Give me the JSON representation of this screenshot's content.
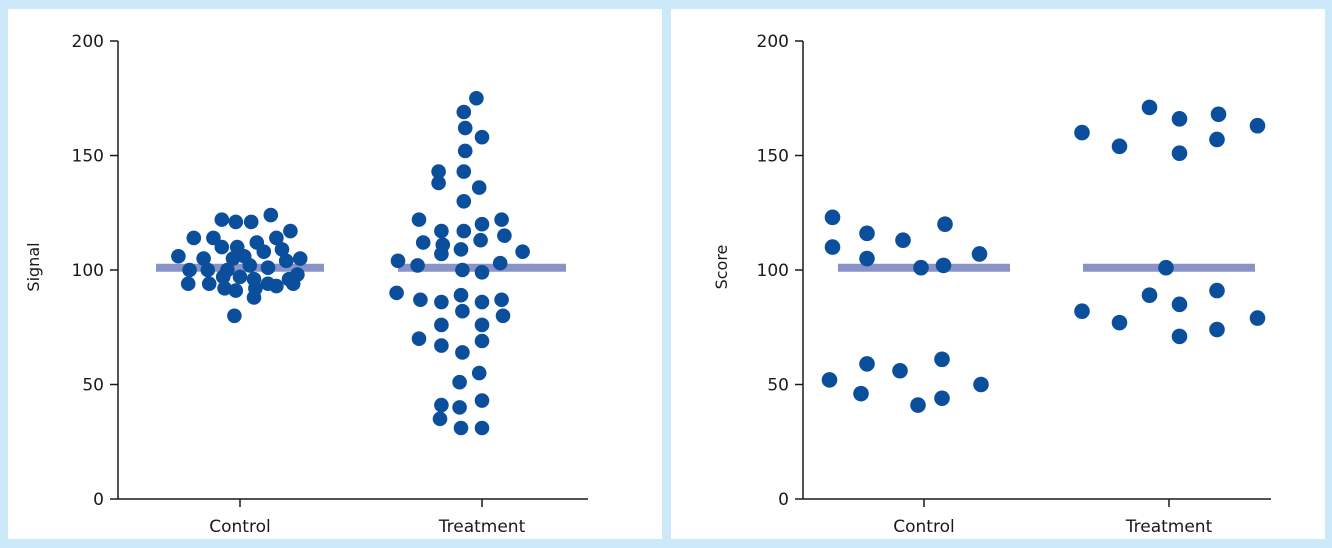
{
  "chart_data": [
    {
      "type": "scatter",
      "title": "",
      "xlabel": "",
      "ylabel": "Signal",
      "ylim": [
        0,
        200
      ],
      "yticks": [
        0,
        50,
        100,
        150,
        200
      ],
      "categories": [
        "Control",
        "Treatment"
      ],
      "mean_line_color": "#8a93c8",
      "point_color": "#0b4f9c",
      "mean_lines": [
        {
          "category": "Control",
          "y": 101
        },
        {
          "category": "Treatment",
          "y": 101
        }
      ],
      "series": [
        {
          "category": "Control",
          "points": [
            {
              "x": -0.44,
              "y": 106
            },
            {
              "x": -0.33,
              "y": 114
            },
            {
              "x": -0.19,
              "y": 114
            },
            {
              "x": -0.13,
              "y": 122
            },
            {
              "x": -0.03,
              "y": 121
            },
            {
              "x": 0.08,
              "y": 121
            },
            {
              "x": 0.22,
              "y": 124
            },
            {
              "x": 0.36,
              "y": 117
            },
            {
              "x": -0.26,
              "y": 105
            },
            {
              "x": -0.13,
              "y": 110
            },
            {
              "x": -0.05,
              "y": 105
            },
            {
              "x": 0.03,
              "y": 106
            },
            {
              "x": 0.12,
              "y": 112
            },
            {
              "x": 0.26,
              "y": 114
            },
            {
              "x": 0.43,
              "y": 105
            },
            {
              "x": -0.36,
              "y": 100
            },
            {
              "x": -0.23,
              "y": 100
            },
            {
              "x": -0.09,
              "y": 100
            },
            {
              "x": -0.02,
              "y": 110
            },
            {
              "x": 0.07,
              "y": 102
            },
            {
              "x": 0.17,
              "y": 108
            },
            {
              "x": 0.3,
              "y": 109
            },
            {
              "x": -0.37,
              "y": 94
            },
            {
              "x": -0.22,
              "y": 94
            },
            {
              "x": -0.12,
              "y": 97
            },
            {
              "x": 0.0,
              "y": 97
            },
            {
              "x": 0.1,
              "y": 96
            },
            {
              "x": 0.2,
              "y": 101
            },
            {
              "x": 0.33,
              "y": 104
            },
            {
              "x": 0.41,
              "y": 98
            },
            {
              "x": -0.11,
              "y": 92
            },
            {
              "x": -0.03,
              "y": 91
            },
            {
              "x": 0.11,
              "y": 92
            },
            {
              "x": 0.2,
              "y": 94
            },
            {
              "x": 0.26,
              "y": 93
            },
            {
              "x": 0.35,
              "y": 96
            },
            {
              "x": 0.38,
              "y": 94
            },
            {
              "x": 0.1,
              "y": 88
            },
            {
              "x": -0.04,
              "y": 80
            }
          ]
        },
        {
          "category": "Treatment",
          "points": [
            {
              "x": -0.04,
              "y": 175
            },
            {
              "x": -0.13,
              "y": 169
            },
            {
              "x": -0.12,
              "y": 162
            },
            {
              "x": 0.0,
              "y": 158
            },
            {
              "x": -0.12,
              "y": 152
            },
            {
              "x": -0.31,
              "y": 143
            },
            {
              "x": -0.13,
              "y": 143
            },
            {
              "x": -0.31,
              "y": 138
            },
            {
              "x": -0.02,
              "y": 136
            },
            {
              "x": -0.13,
              "y": 130
            },
            {
              "x": -0.45,
              "y": 122
            },
            {
              "x": -0.29,
              "y": 117
            },
            {
              "x": -0.13,
              "y": 117
            },
            {
              "x": 0.0,
              "y": 120
            },
            {
              "x": 0.14,
              "y": 122
            },
            {
              "x": -0.42,
              "y": 112
            },
            {
              "x": -0.28,
              "y": 111
            },
            {
              "x": -0.15,
              "y": 109
            },
            {
              "x": -0.01,
              "y": 113
            },
            {
              "x": 0.16,
              "y": 115
            },
            {
              "x": 0.29,
              "y": 108
            },
            {
              "x": -0.6,
              "y": 104
            },
            {
              "x": -0.46,
              "y": 102
            },
            {
              "x": -0.29,
              "y": 107
            },
            {
              "x": -0.14,
              "y": 100
            },
            {
              "x": 0.0,
              "y": 99
            },
            {
              "x": 0.13,
              "y": 103
            },
            {
              "x": -0.61,
              "y": 90
            },
            {
              "x": -0.44,
              "y": 87
            },
            {
              "x": -0.29,
              "y": 86
            },
            {
              "x": -0.15,
              "y": 89
            },
            {
              "x": 0.0,
              "y": 86
            },
            {
              "x": 0.14,
              "y": 87
            },
            {
              "x": -0.29,
              "y": 76
            },
            {
              "x": -0.14,
              "y": 82
            },
            {
              "x": 0.0,
              "y": 76
            },
            {
              "x": 0.15,
              "y": 80
            },
            {
              "x": -0.45,
              "y": 70
            },
            {
              "x": -0.29,
              "y": 67
            },
            {
              "x": -0.14,
              "y": 64
            },
            {
              "x": 0.0,
              "y": 69
            },
            {
              "x": -0.02,
              "y": 55
            },
            {
              "x": -0.16,
              "y": 51
            },
            {
              "x": -0.29,
              "y": 41
            },
            {
              "x": -0.16,
              "y": 40
            },
            {
              "x": 0.0,
              "y": 43
            },
            {
              "x": -0.3,
              "y": 35
            },
            {
              "x": -0.15,
              "y": 31
            },
            {
              "x": 0.0,
              "y": 31
            }
          ]
        }
      ]
    },
    {
      "type": "scatter",
      "title": "",
      "xlabel": "",
      "ylabel": "Score",
      "ylim": [
        0,
        200
      ],
      "yticks": [
        0,
        50,
        100,
        150,
        200
      ],
      "categories": [
        "Control",
        "Treatment"
      ],
      "mean_line_color": "#8a93c8",
      "point_color": "#0b4f9c",
      "mean_lines": [
        {
          "category": "Control",
          "y": 101
        },
        {
          "category": "Treatment",
          "y": 101
        }
      ],
      "series": [
        {
          "category": "Control",
          "points": [
            {
              "x": -0.61,
              "y": 123
            },
            {
              "x": -0.38,
              "y": 116
            },
            {
              "x": -0.14,
              "y": 113
            },
            {
              "x": 0.14,
              "y": 120
            },
            {
              "x": -0.61,
              "y": 110
            },
            {
              "x": -0.38,
              "y": 105
            },
            {
              "x": -0.02,
              "y": 101
            },
            {
              "x": 0.13,
              "y": 102
            },
            {
              "x": 0.37,
              "y": 107
            },
            {
              "x": -0.63,
              "y": 52
            },
            {
              "x": -0.38,
              "y": 59
            },
            {
              "x": -0.42,
              "y": 46
            },
            {
              "x": -0.16,
              "y": 56
            },
            {
              "x": -0.04,
              "y": 41
            },
            {
              "x": 0.12,
              "y": 61
            },
            {
              "x": 0.12,
              "y": 44
            },
            {
              "x": 0.38,
              "y": 50
            }
          ]
        },
        {
          "category": "Treatment",
          "points": [
            {
              "x": -0.58,
              "y": 160
            },
            {
              "x": -0.33,
              "y": 154
            },
            {
              "x": -0.13,
              "y": 171
            },
            {
              "x": 0.07,
              "y": 166
            },
            {
              "x": 0.07,
              "y": 151
            },
            {
              "x": 0.33,
              "y": 168
            },
            {
              "x": 0.32,
              "y": 157
            },
            {
              "x": 0.59,
              "y": 163
            },
            {
              "x": -0.02,
              "y": 101
            },
            {
              "x": -0.58,
              "y": 82
            },
            {
              "x": -0.33,
              "y": 77
            },
            {
              "x": -0.13,
              "y": 89
            },
            {
              "x": 0.07,
              "y": 85
            },
            {
              "x": 0.07,
              "y": 71
            },
            {
              "x": 0.32,
              "y": 91
            },
            {
              "x": 0.32,
              "y": 74
            },
            {
              "x": 0.59,
              "y": 79
            }
          ]
        }
      ]
    }
  ]
}
